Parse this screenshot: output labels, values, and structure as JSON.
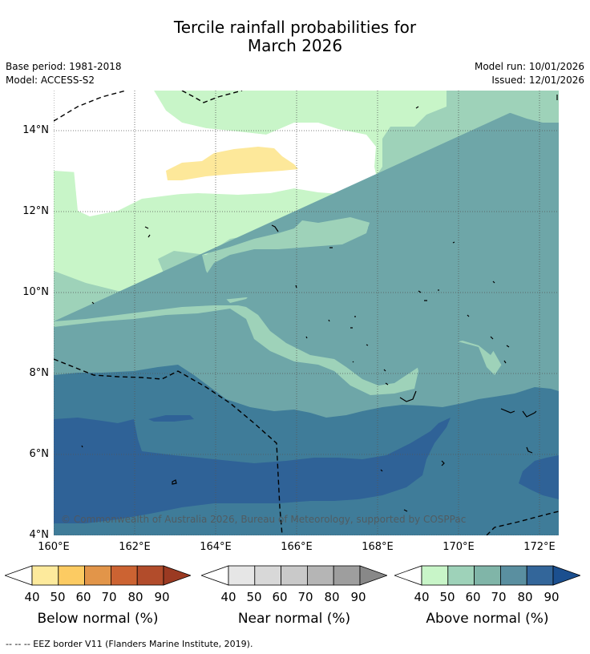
{
  "title": {
    "line1": "Tercile rainfall probabilities for",
    "line2": "March 2026"
  },
  "meta": {
    "base_period": "Base period: 1981-2018",
    "model": "Model: ACCESS-S2",
    "model_run": "Model run: 10/01/2026",
    "issued": "Issued: 12/01/2026"
  },
  "map": {
    "lat_labels": [
      "14°N",
      "12°N",
      "10°N",
      "8°N",
      "6°N",
      "4°N"
    ],
    "lon_labels": [
      "160°E",
      "162°E",
      "164°E",
      "166°E",
      "168°E",
      "170°E",
      "172°E"
    ],
    "copyright": "© Commonwealth of Australia 2026, Bureau of Meteorology, supported by COSPPac",
    "colors": {
      "above_50": "#c8f5c8",
      "above_60": "#9ed2b9",
      "above_70": "#6ea6a8",
      "above_80": "#3f7c99",
      "above_90": "#2f6297",
      "below_50": "#fde89a",
      "white": "#ffffff"
    }
  },
  "legend": {
    "below": {
      "title": "Below normal (%)",
      "ticks": [
        "40",
        "50",
        "60",
        "70",
        "80",
        "90"
      ],
      "colors": [
        "#fdea9c",
        "#fccb62",
        "#e29549",
        "#cc6332",
        "#b24c2b",
        "#9b3a22"
      ]
    },
    "near": {
      "title": "Near normal (%)",
      "ticks": [
        "40",
        "50",
        "60",
        "70",
        "80",
        "90"
      ],
      "colors": [
        "#e6e6e6",
        "#d8d8d8",
        "#c9c9c9",
        "#b5b5b5",
        "#9e9e9e",
        "#888888"
      ]
    },
    "above": {
      "title": "Above normal (%)",
      "ticks": [
        "40",
        "50",
        "60",
        "70",
        "80",
        "90"
      ],
      "colors": [
        "#c8f5c8",
        "#9ed2b9",
        "#80b5a8",
        "#5a8fa0",
        "#33669a",
        "#1b4f8f"
      ]
    }
  },
  "footnote": "--  --  -- EEZ border V11 (Flanders Marine Institute, 2019)."
}
